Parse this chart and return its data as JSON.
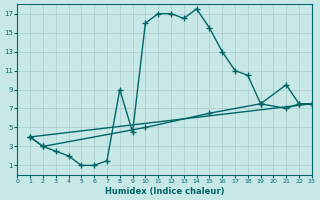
{
  "xlabel": "Humidex (Indice chaleur)",
  "bg_color": "#c8e8e8",
  "line_color": "#006666",
  "grid_color": "#aacccc",
  "xlim": [
    0,
    23
  ],
  "ylim": [
    0,
    18
  ],
  "xticks": [
    0,
    1,
    2,
    3,
    4,
    5,
    6,
    7,
    8,
    9,
    10,
    11,
    12,
    13,
    14,
    15,
    16,
    17,
    18,
    19,
    20,
    21,
    22,
    23
  ],
  "yticks": [
    1,
    3,
    5,
    7,
    9,
    11,
    13,
    15,
    17
  ],
  "line1_x": [
    1,
    2,
    3,
    4,
    5,
    6,
    7,
    8,
    9,
    10,
    11,
    12,
    13,
    14,
    15,
    16,
    17,
    18,
    19,
    21,
    22,
    23
  ],
  "line1_y": [
    4,
    3,
    2.5,
    2,
    1,
    1,
    1.5,
    9,
    4.5,
    16,
    17,
    17,
    16.5,
    17.5,
    15.5,
    13,
    11,
    10.5,
    7.5,
    7,
    7.5,
    7.5
  ],
  "line2_x": [
    1,
    2,
    10,
    15,
    19,
    21,
    22,
    23
  ],
  "line2_y": [
    4,
    3,
    5,
    6.5,
    7.5,
    9.5,
    7.5,
    7.5
  ],
  "line3_x": [
    1,
    23
  ],
  "line3_y": [
    4,
    7.5
  ]
}
